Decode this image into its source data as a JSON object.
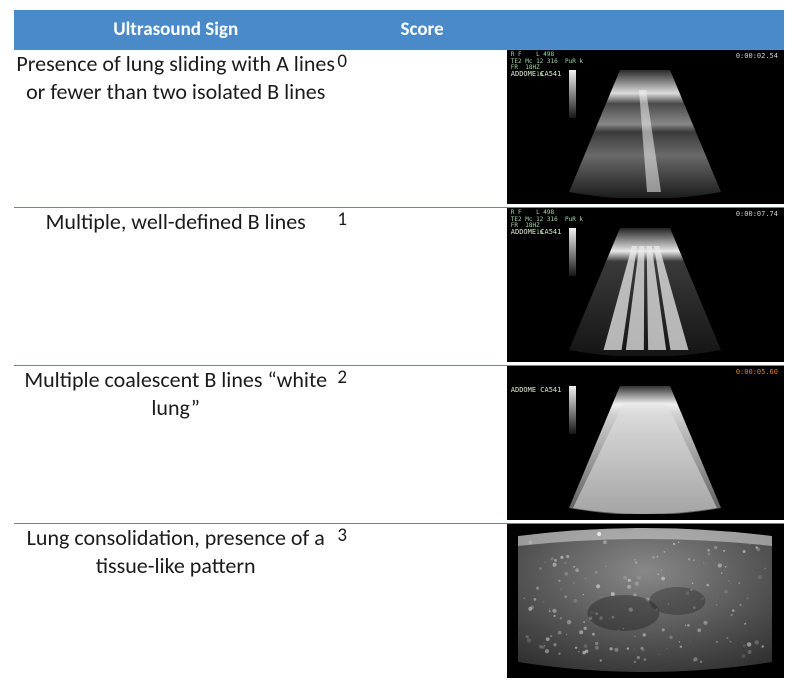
{
  "table": {
    "headers": {
      "sign": "Ultrasound Sign",
      "score": "Score",
      "img": ""
    },
    "header_bg": "#4a8ac9",
    "header_fg": "#ffffff",
    "border_color": "#5b8bb5",
    "body_fontsize": 22,
    "rows": [
      {
        "sign": "Presence of lung sliding with A lines or fewer than two isolated B lines",
        "score": "0",
        "image": {
          "type": "a-lines",
          "header_text": "R F    L 498\nTE2 Mc 12 316  PuR k\nFR  18HZ\n       16",
          "label": "ADDOME  CA541",
          "timer": "0:00:02.54",
          "pleura_color": "#dcdcdc",
          "bg_gradient_top": "#7a7a7a",
          "bg_gradient_bottom": "#1a1a1a",
          "bline_count": 1
        }
      },
      {
        "sign": "Multiple, well-defined B lines",
        "score": "1",
        "image": {
          "type": "b-lines",
          "header_text": "R F    L 498\nTE2 Mc 12 316  PuR k\nFR  18HZ\n       16",
          "label": "ADDOME  CA541",
          "timer": "0:00:07.74",
          "pleura_color": "#e8e8e8",
          "bg_gradient_top": "#6a6a6a",
          "bg_gradient_bottom": "#141414",
          "bline_count": 4
        }
      },
      {
        "sign": "Multiple coalescent B lines “white lung”",
        "score": "2",
        "image": {
          "type": "white-lung",
          "header_text": "",
          "label": "ADDOME  CA541",
          "timer": "0:00:05.60",
          "timer_color": "#e08030",
          "pleura_color": "#f0f0f0",
          "bg_gradient_top": "#d0d0d0",
          "bg_gradient_bottom": "#5a5a5a"
        }
      },
      {
        "sign": "Lung consolidation, presence of a tissue-like pattern",
        "score": "3",
        "image": {
          "type": "consolidation",
          "header_text": "",
          "label": "",
          "timer": "",
          "pleura_color": "#c0c0c0",
          "bg_gradient_top": "#888888",
          "bg_gradient_bottom": "#2a2a2a"
        }
      }
    ]
  }
}
